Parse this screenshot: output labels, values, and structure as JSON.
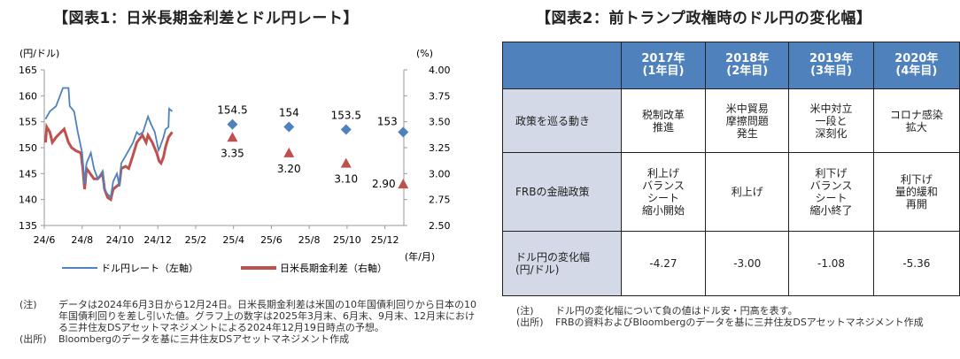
{
  "chart_title": "【図表1：日米長期金利差とドル円レート】",
  "table_title": "【図表2：前トランプ政権時のドル円の変化幅】",
  "chart_data": {
    "type": "line",
    "left_axis_label": "(円/ドル)",
    "right_axis_label": "(%)",
    "x_axis_label": "(年/月)",
    "left_ylim": [
      135,
      165
    ],
    "left_ticks": [
      "135",
      "140",
      "145",
      "150",
      "155",
      "160",
      "165"
    ],
    "right_ylim": [
      2.5,
      4.0
    ],
    "right_ticks": [
      "2.50",
      "2.75",
      "3.00",
      "3.25",
      "3.50",
      "3.75",
      "4.00"
    ],
    "x_ticks": [
      "24/6",
      "24/8",
      "24/10",
      "24/12",
      "25/2",
      "25/4",
      "25/6",
      "25/8",
      "25/10",
      "25/12"
    ],
    "grid": false,
    "legend": "bottom",
    "colors": {
      "usdjpy": "#4f81bd",
      "spread": "#c0504d"
    },
    "series": [
      {
        "name": "ドル円レート（左軸）",
        "axis": "left",
        "points": [
          [
            "2024-06-03",
            155.5
          ],
          [
            "2024-06-10",
            157
          ],
          [
            "2024-06-20",
            158
          ],
          [
            "2024-07-01",
            161.5
          ],
          [
            "2024-07-10",
            161.5
          ],
          [
            "2024-07-12",
            158
          ],
          [
            "2024-07-19",
            157
          ],
          [
            "2024-07-25",
            153
          ],
          [
            "2024-08-01",
            149
          ],
          [
            "2024-08-05",
            143
          ],
          [
            "2024-08-08",
            147
          ],
          [
            "2024-08-15",
            149
          ],
          [
            "2024-08-20",
            146
          ],
          [
            "2024-08-26",
            144
          ],
          [
            "2024-09-03",
            145.5
          ],
          [
            "2024-09-06",
            142
          ],
          [
            "2024-09-11",
            141
          ],
          [
            "2024-09-16",
            140.5
          ],
          [
            "2024-09-20",
            143.5
          ],
          [
            "2024-09-26",
            145
          ],
          [
            "2024-09-30",
            142.5
          ],
          [
            "2024-10-03",
            147
          ],
          [
            "2024-10-08",
            148
          ],
          [
            "2024-10-15",
            149.5
          ],
          [
            "2024-10-22",
            151
          ],
          [
            "2024-10-28",
            153
          ],
          [
            "2024-11-01",
            152.5
          ],
          [
            "2024-11-07",
            153
          ],
          [
            "2024-11-15",
            156
          ],
          [
            "2024-11-20",
            154.5
          ],
          [
            "2024-11-26",
            153
          ],
          [
            "2024-12-02",
            149.5
          ],
          [
            "2024-12-04",
            150
          ],
          [
            "2024-12-10",
            152
          ],
          [
            "2024-12-13",
            153.5
          ],
          [
            "2024-12-18",
            154
          ],
          [
            "2024-12-19",
            157.5
          ],
          [
            "2024-12-24",
            157
          ]
        ]
      },
      {
        "name": "日米長期金利差（右軸）",
        "axis": "right",
        "points": [
          [
            "2024-06-03",
            3.3
          ],
          [
            "2024-06-05",
            3.45
          ],
          [
            "2024-06-10",
            3.4
          ],
          [
            "2024-06-14",
            3.3
          ],
          [
            "2024-06-20",
            3.35
          ],
          [
            "2024-06-28",
            3.4
          ],
          [
            "2024-07-03",
            3.43
          ],
          [
            "2024-07-10",
            3.3
          ],
          [
            "2024-07-15",
            3.25
          ],
          [
            "2024-07-22",
            3.22
          ],
          [
            "2024-07-30",
            3.2
          ],
          [
            "2024-08-02",
            3.05
          ],
          [
            "2024-08-05",
            2.85
          ],
          [
            "2024-08-08",
            3.05
          ],
          [
            "2024-08-14",
            3.0
          ],
          [
            "2024-08-20",
            2.95
          ],
          [
            "2024-08-26",
            2.95
          ],
          [
            "2024-09-03",
            3.0
          ],
          [
            "2024-09-06",
            2.85
          ],
          [
            "2024-09-11",
            2.77
          ],
          [
            "2024-09-16",
            2.75
          ],
          [
            "2024-09-20",
            2.85
          ],
          [
            "2024-09-30",
            2.9
          ],
          [
            "2024-10-03",
            3.05
          ],
          [
            "2024-10-10",
            3.07
          ],
          [
            "2024-10-15",
            3.05
          ],
          [
            "2024-10-22",
            3.18
          ],
          [
            "2024-10-28",
            3.3
          ],
          [
            "2024-11-06",
            3.37
          ],
          [
            "2024-11-12",
            3.3
          ],
          [
            "2024-11-15",
            3.37
          ],
          [
            "2024-11-22",
            3.3
          ],
          [
            "2024-11-29",
            3.2
          ],
          [
            "2024-12-03",
            3.12
          ],
          [
            "2024-12-06",
            3.1
          ],
          [
            "2024-12-10",
            3.16
          ],
          [
            "2024-12-13",
            3.25
          ],
          [
            "2024-12-18",
            3.35
          ],
          [
            "2024-12-24",
            3.4
          ]
        ]
      }
    ],
    "forecasts": [
      {
        "date": "2025-03-31",
        "usdjpy": 154.5,
        "usdjpy_label": "154.5",
        "spread": 3.35,
        "spread_label": "3.35"
      },
      {
        "date": "2025-06-30",
        "usdjpy": 154,
        "usdjpy_label": "154",
        "spread": 3.2,
        "spread_label": "3.20"
      },
      {
        "date": "2025-09-30",
        "usdjpy": 153.5,
        "usdjpy_label": "153.5",
        "spread": 3.1,
        "spread_label": "3.10"
      },
      {
        "date": "2025-12-31",
        "usdjpy": 153,
        "usdjpy_label": "153",
        "spread": 2.9,
        "spread_label": "2.90"
      }
    ]
  },
  "notes1": [
    {
      "k": "(注)",
      "v": "データは2024年6月3日から12月24日。日米長期金利差は米国の10年国債利回りから日本の10年国債利回りを差し引いた値。グラフ上の数字は2025年3月末、6月末、9月末、12月末における三井住友DSアセットマネジメントによる2024年12月19日時点の予想。"
    },
    {
      "k": "(出所)",
      "v": "Bloombergのデータを基に三井住友DSアセットマネジメント作成"
    }
  ],
  "table": {
    "headers": [
      "",
      "2017年\n(1年目)",
      "2018年\n(2年目)",
      "2019年\n(3年目)",
      "2020年\n(4年目)"
    ],
    "rows": [
      {
        "label": "政策を巡る動き",
        "cells": [
          "税制改革\n推進",
          "米中貿易\n摩擦問題\n発生",
          "米中対立\n一段と\n深刻化",
          "コロナ感染\n拡大"
        ]
      },
      {
        "label": "FRBの金融政策",
        "cells": [
          "利上げ\nバランス\nシート\n縮小開始",
          "利上げ",
          "利下げ\nバランス\nシート\n縮小終了",
          "利下げ\n量的緩和\n再開"
        ]
      },
      {
        "label": "ドル円の変化幅\n(円/ドル)",
        "cells": [
          "-4.27",
          "-3.00",
          "-1.08",
          "-5.36"
        ]
      }
    ]
  },
  "notes2": [
    {
      "k": "(注)",
      "v": "ドル円の変化幅について負の値はドル安・円高を表す。"
    },
    {
      "k": "(出所)",
      "v": "FRBの資料およびBloombergのデータを基に三井住友DSアセットマネジメント作成"
    }
  ]
}
